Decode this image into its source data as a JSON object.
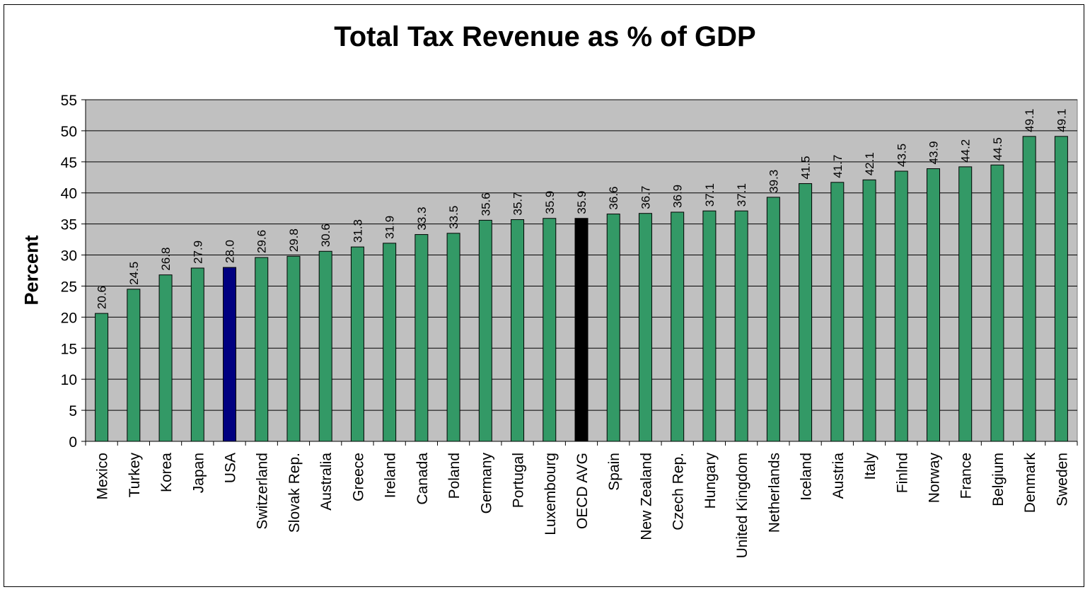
{
  "chart_data": {
    "type": "bar",
    "title": "Total Tax Revenue as % of GDP",
    "xlabel": "",
    "ylabel": "Percent",
    "ylim": [
      0,
      55
    ],
    "yticks": [
      0,
      5,
      10,
      15,
      20,
      25,
      30,
      35,
      40,
      45,
      50,
      55
    ],
    "grid": true,
    "plot_background": "#C0C0C0",
    "categories": [
      "Mexico",
      "Turkey",
      "Korea",
      "Japan",
      "USA",
      "Switzerland",
      "Slovak Rep.",
      "Australia",
      "Greece",
      "Ireland",
      "Canada",
      "Poland",
      "Germany",
      "Portugal",
      "Luxembourg",
      "OECD AVG",
      "Spain",
      "New Zealand",
      "Czech Rep.",
      "Hungary",
      "United Kingdom",
      "Netherlands",
      "Iceland",
      "Austria",
      "Italy",
      "Finlnd",
      "Norway",
      "France",
      "Belgium",
      "Denmark",
      "Sweden"
    ],
    "values": [
      20.6,
      24.5,
      26.8,
      27.9,
      28.0,
      29.6,
      29.8,
      30.6,
      31.3,
      31.9,
      33.3,
      33.5,
      35.6,
      35.7,
      35.9,
      35.9,
      36.6,
      36.7,
      36.9,
      37.1,
      37.1,
      39.3,
      41.5,
      41.7,
      42.1,
      43.5,
      43.9,
      44.2,
      44.5,
      49.1,
      49.1
    ],
    "data_labels": [
      "20.6",
      "24.5",
      "26.8",
      "27.9",
      "28.0",
      "29.6",
      "29.8",
      "30.6",
      "31.3",
      "31.9",
      "33.3",
      "33.5",
      "35.6",
      "35.7",
      "35.9",
      "35.9",
      "36.6",
      "36.7",
      "36.9",
      "37.1",
      "37.1",
      "39.3",
      "41.5",
      "41.7",
      "42.1",
      "43.5",
      "43.9",
      "44.2",
      "44.5",
      "49.1",
      "49.1"
    ],
    "bar_color": "#339966",
    "highlight_colors": {
      "USA": "#000080",
      "OECD AVG": "#000000"
    }
  }
}
